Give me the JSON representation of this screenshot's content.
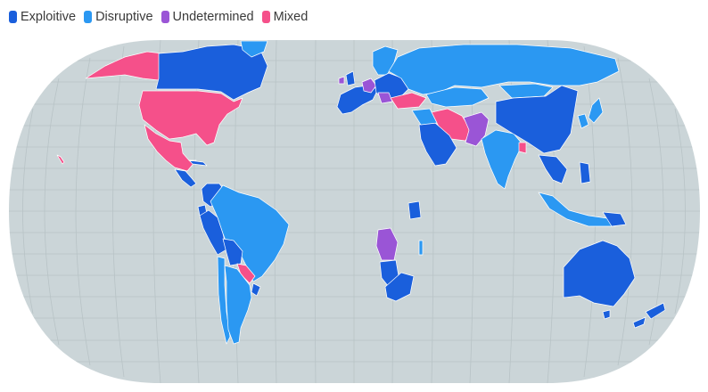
{
  "legend": {
    "items": [
      {
        "label": "Exploitive",
        "color": "#1a5fdc"
      },
      {
        "label": "Disruptive",
        "color": "#2b98f2"
      },
      {
        "label": "Undetermined",
        "color": "#9a55d6"
      },
      {
        "label": "Mixed",
        "color": "#f5508a"
      }
    ]
  },
  "colors": {
    "ocean": "#cbd5d8",
    "graticule": "#b8c3c6",
    "exploitive": "#1a5fdc",
    "disruptive": "#2b98f2",
    "undetermined": "#9a55d6",
    "mixed": "#f5508a",
    "border": "#ffffff"
  }
}
